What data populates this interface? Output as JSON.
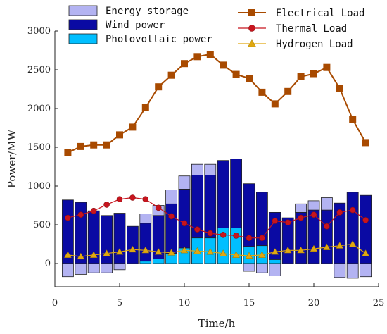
{
  "chart_data": {
    "type": "bar+line",
    "xlabel": "Time/h",
    "ylabel": "Power/MW",
    "xlim": [
      0,
      25
    ],
    "ylim": [
      -300,
      3000
    ],
    "xticks": [
      0,
      5,
      10,
      15,
      20,
      25
    ],
    "yticks": [
      0,
      500,
      1000,
      1500,
      2000,
      2500,
      3000
    ],
    "x": [
      1,
      2,
      3,
      4,
      5,
      6,
      7,
      8,
      9,
      10,
      11,
      12,
      13,
      14,
      15,
      16,
      17,
      18,
      19,
      20,
      21,
      22,
      23,
      24
    ],
    "bar_series": [
      {
        "name": "Photovoltaic power",
        "color": "#00bfff",
        "values": [
          0,
          0,
          0,
          0,
          0,
          0,
          30,
          60,
          130,
          200,
          330,
          330,
          460,
          460,
          220,
          230,
          50,
          0,
          0,
          0,
          0,
          0,
          0,
          0
        ]
      },
      {
        "name": "Wind power",
        "color": "#0a0aa3",
        "values": [
          820,
          790,
          680,
          620,
          650,
          480,
          490,
          560,
          640,
          760,
          810,
          810,
          870,
          890,
          810,
          690,
          610,
          590,
          660,
          690,
          690,
          780,
          920,
          880
        ]
      },
      {
        "name": "Energy storage",
        "color": "#b3b3f2",
        "values": [
          -170,
          -140,
          -120,
          -120,
          -80,
          0,
          120,
          130,
          180,
          170,
          140,
          140,
          0,
          0,
          -100,
          -120,
          -160,
          0,
          110,
          120,
          160,
          -180,
          -190,
          -170
        ]
      }
    ],
    "line_series": [
      {
        "name": "Electrical Load",
        "color": "#a84a00",
        "marker": "square",
        "values": [
          1430,
          1510,
          1530,
          1530,
          1660,
          1760,
          2010,
          2280,
          2430,
          2580,
          2670,
          2700,
          2560,
          2440,
          2390,
          2210,
          2060,
          2220,
          2410,
          2450,
          2530,
          2260,
          1860,
          1560
        ]
      },
      {
        "name": "Thermal Load",
        "color": "#c8141e",
        "marker": "circle",
        "values": [
          590,
          630,
          680,
          760,
          830,
          850,
          830,
          720,
          610,
          520,
          440,
          390,
          370,
          360,
          330,
          330,
          550,
          530,
          590,
          630,
          480,
          660,
          690,
          560
        ]
      },
      {
        "name": "Hydrogen Load",
        "color": "#e0a810",
        "marker": "triangle",
        "values": [
          110,
          90,
          110,
          130,
          150,
          180,
          170,
          150,
          140,
          170,
          160,
          150,
          130,
          110,
          100,
          110,
          150,
          170,
          170,
          190,
          210,
          230,
          250,
          130
        ]
      }
    ],
    "legend": {
      "placement": "top",
      "bar_entries": [
        "Energy storage",
        "Wind power",
        "Photovoltaic power"
      ],
      "line_entries": [
        "Electrical Load",
        "Thermal Load",
        "Hydrogen Load"
      ]
    },
    "grid": false
  }
}
